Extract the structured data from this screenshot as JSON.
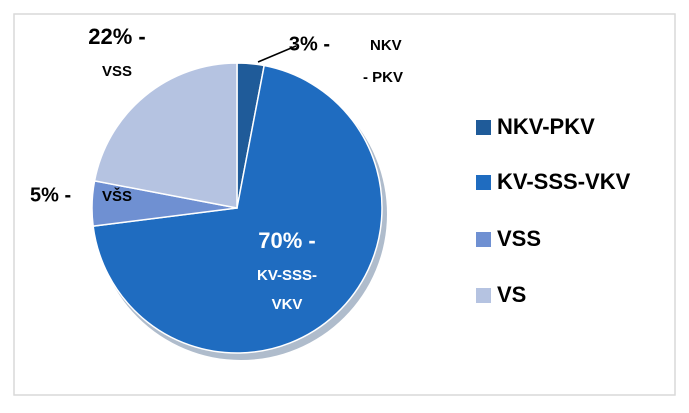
{
  "chart_data": {
    "type": "pie",
    "categories": [
      "NKV-PKV",
      "KV-SSS-VKV",
      "VSS",
      "VS"
    ],
    "values": [
      3,
      70,
      5,
      22
    ],
    "value_labels": [
      "3% -",
      "70% -",
      "5% -",
      "22% -"
    ],
    "label_names": [
      [
        "NKV",
        "- PKV"
      ],
      [
        "KV-SSS-",
        "VKV"
      ],
      [
        "VŠS"
      ],
      [
        "VSS"
      ]
    ],
    "colors": [
      "#1f5b99",
      "#1f6cc0",
      "#6f90d2",
      "#b5c3e1"
    ],
    "legend": "right"
  }
}
